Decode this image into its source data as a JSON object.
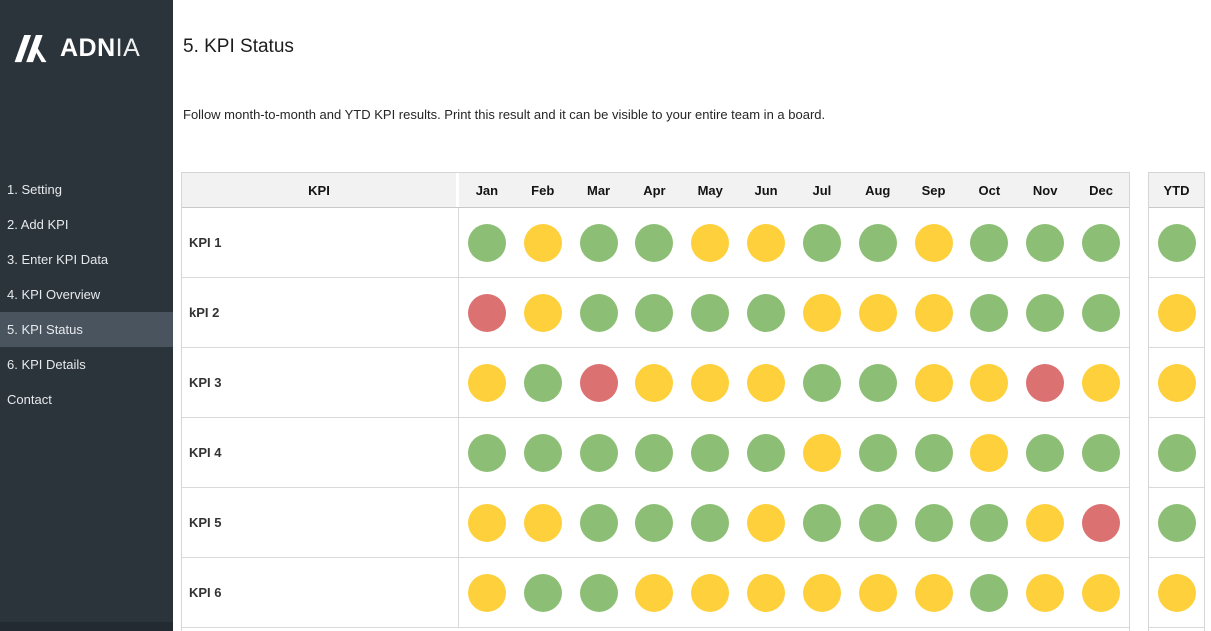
{
  "sidebar": {
    "logo": {
      "brand_bold": "ADN",
      "brand_light": "IA"
    },
    "items": [
      {
        "label": "1. Setting",
        "active": false
      },
      {
        "label": "2. Add KPI",
        "active": false
      },
      {
        "label": "3. Enter KPI Data",
        "active": false
      },
      {
        "label": "4. KPI Overview",
        "active": false
      },
      {
        "label": "5. KPI Status",
        "active": true
      },
      {
        "label": "6. KPI Details",
        "active": false
      },
      {
        "label": "Contact",
        "active": false
      }
    ]
  },
  "main": {
    "title": "5. KPI Status",
    "description": "Follow month-to-month and YTD KPI results. Print this result and it can be visible to your entire team in a board."
  },
  "table": {
    "kpi_header": "KPI",
    "months": [
      "Jan",
      "Feb",
      "Mar",
      "Apr",
      "May",
      "Jun",
      "Jul",
      "Aug",
      "Sep",
      "Oct",
      "Nov",
      "Dec"
    ],
    "ytd_header": "YTD",
    "rows": [
      {
        "label": "KPI 1",
        "statuses": [
          "green",
          "yellow",
          "green",
          "green",
          "yellow",
          "yellow",
          "green",
          "green",
          "yellow",
          "green",
          "green",
          "green"
        ],
        "ytd": "green"
      },
      {
        "label": "kPI 2",
        "statuses": [
          "red",
          "yellow",
          "green",
          "green",
          "green",
          "green",
          "yellow",
          "yellow",
          "yellow",
          "green",
          "green",
          "green"
        ],
        "ytd": "yellow"
      },
      {
        "label": "KPI 3",
        "statuses": [
          "yellow",
          "green",
          "red",
          "yellow",
          "yellow",
          "yellow",
          "green",
          "green",
          "yellow",
          "yellow",
          "red",
          "yellow"
        ],
        "ytd": "yellow"
      },
      {
        "label": "KPI 4",
        "statuses": [
          "green",
          "green",
          "green",
          "green",
          "green",
          "green",
          "yellow",
          "green",
          "green",
          "yellow",
          "green",
          "green"
        ],
        "ytd": "green"
      },
      {
        "label": "KPI 5",
        "statuses": [
          "yellow",
          "yellow",
          "green",
          "green",
          "green",
          "yellow",
          "green",
          "green",
          "green",
          "green",
          "yellow",
          "red"
        ],
        "ytd": "green"
      },
      {
        "label": "KPI 6",
        "statuses": [
          "yellow",
          "green",
          "green",
          "yellow",
          "yellow",
          "yellow",
          "yellow",
          "yellow",
          "yellow",
          "green",
          "yellow",
          "yellow"
        ],
        "ytd": "yellow"
      }
    ]
  },
  "colors": {
    "green": "#8CBF75",
    "yellow": "#FDD03C",
    "red": "#DC7172",
    "sidebar_bg": "#2B333B",
    "sidebar_active_bg": "#4A545F",
    "header_bg": "#F2F2F2",
    "border": "#D9D9D9"
  }
}
